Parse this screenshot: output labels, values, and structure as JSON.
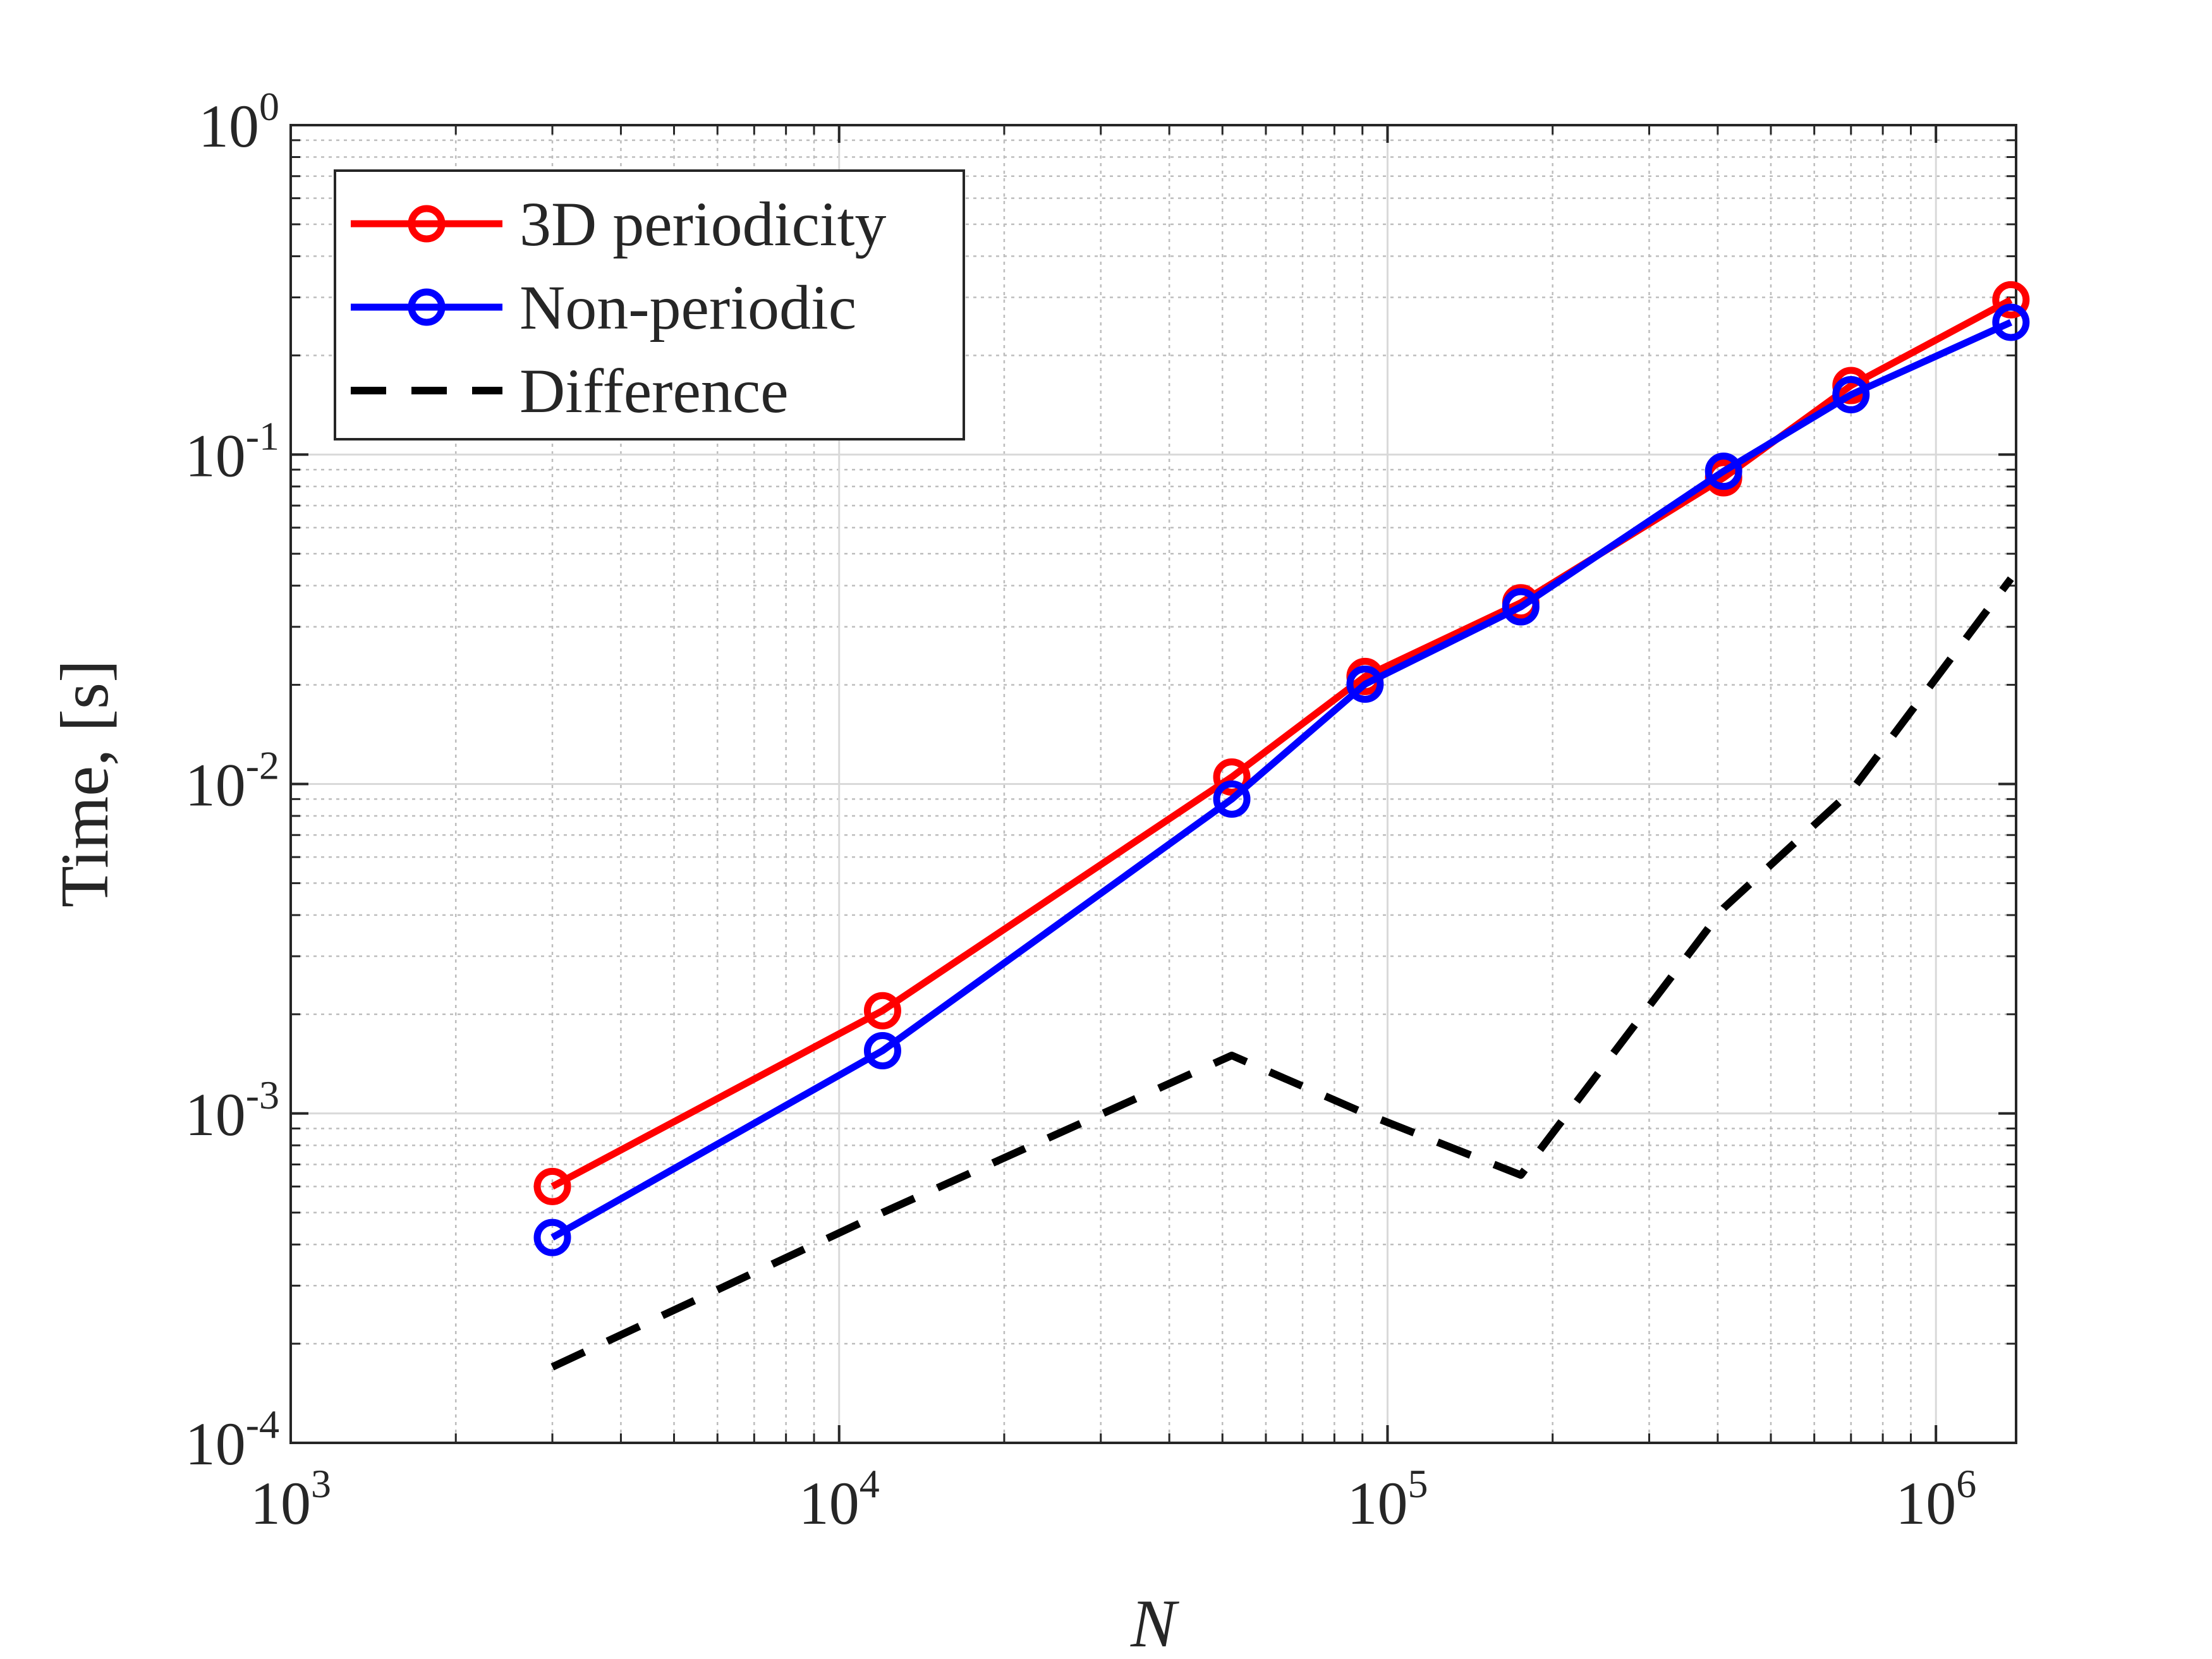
{
  "chart_data": {
    "type": "line",
    "xlabel": "N",
    "ylabel": "Time, [s]",
    "xscale": "log",
    "yscale": "log",
    "xlim": [
      1000,
      1400000
    ],
    "ylim": [
      0.0001,
      1
    ],
    "grid": true,
    "legend_position": "top-left",
    "x_ticks": [
      {
        "value": 1000,
        "base": "10",
        "exp": "3"
      },
      {
        "value": 10000,
        "base": "10",
        "exp": "4"
      },
      {
        "value": 100000,
        "base": "10",
        "exp": "5"
      },
      {
        "value": 1000000,
        "base": "10",
        "exp": "6"
      }
    ],
    "y_ticks": [
      {
        "value": 0.0001,
        "base": "10",
        "exp": "-4"
      },
      {
        "value": 0.001,
        "base": "10",
        "exp": "-3"
      },
      {
        "value": 0.01,
        "base": "10",
        "exp": "-2"
      },
      {
        "value": 0.1,
        "base": "10",
        "exp": "-1"
      },
      {
        "value": 1,
        "base": "10",
        "exp": "0"
      }
    ],
    "series": [
      {
        "name": "3D periodicity",
        "color": "#ff0000",
        "style": "solid",
        "marker": "circle",
        "x": [
          3000,
          12000,
          52000,
          91000,
          175000,
          410000,
          700000,
          1370000
        ],
        "y": [
          0.0006,
          0.00205,
          0.0105,
          0.0212,
          0.0355,
          0.085,
          0.162,
          0.295
        ]
      },
      {
        "name": "Non-periodic",
        "color": "#0000ff",
        "style": "solid",
        "marker": "circle",
        "x": [
          3000,
          12000,
          52000,
          91000,
          175000,
          410000,
          700000,
          1370000
        ],
        "y": [
          0.00042,
          0.00155,
          0.009,
          0.0201,
          0.0345,
          0.089,
          0.152,
          0.252
        ]
      },
      {
        "name": "Difference",
        "color": "#000000",
        "style": "dashed",
        "marker": "none",
        "x": [
          3000,
          12000,
          52000,
          91000,
          175000,
          410000,
          700000,
          1370000
        ],
        "y": [
          0.00017,
          0.0005,
          0.0015,
          0.001,
          0.00065,
          0.0042,
          0.0095,
          0.042
        ]
      }
    ]
  }
}
